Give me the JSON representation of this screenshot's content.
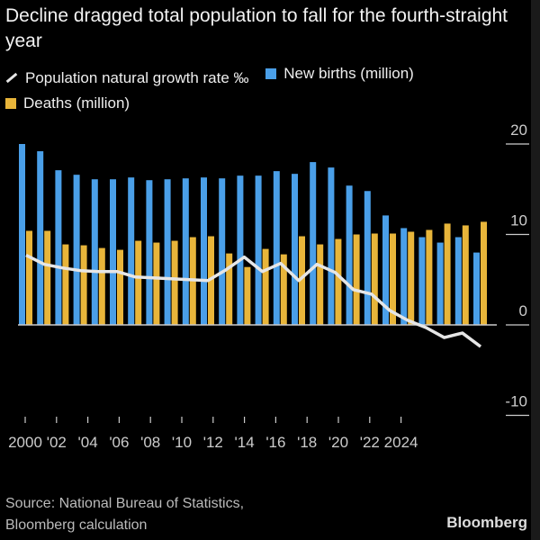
{
  "title": "Decline dragged total population to fall for the fourth-straight year",
  "legend": {
    "growth": "Population natural growth rate ‰",
    "births": "New births (million)",
    "deaths": "Deaths (million)"
  },
  "colors": {
    "births": "#4a9fe8",
    "deaths": "#e8b53a",
    "growth": "#e6e6e6"
  },
  "footer": {
    "source_line1": "Source: National Bureau of Statistics,",
    "source_line2": "Bloomberg calculation",
    "brand": "Bloomberg"
  },
  "chart_data": {
    "type": "bar",
    "title": "Decline dragged total population to fall for the fourth-straight year",
    "x": [
      2000,
      2001,
      2002,
      2003,
      2004,
      2005,
      2006,
      2007,
      2008,
      2009,
      2010,
      2011,
      2012,
      2013,
      2014,
      2015,
      2016,
      2017,
      2018,
      2019,
      2020,
      2021,
      2022,
      2023,
      2024,
      2025
    ],
    "series": [
      {
        "name": "New births (million)",
        "type": "bar",
        "values": [
          20.0,
          19.2,
          17.1,
          16.6,
          16.1,
          16.1,
          16.3,
          16.0,
          16.1,
          16.2,
          16.3,
          16.2,
          16.5,
          16.5,
          17.0,
          16.7,
          18.0,
          17.4,
          15.4,
          14.8,
          12.1,
          10.7,
          9.7,
          9.1,
          9.7,
          8.0
        ]
      },
      {
        "name": "Deaths (million)",
        "type": "bar",
        "values": [
          10.4,
          10.4,
          8.9,
          8.8,
          8.5,
          8.3,
          9.3,
          9.1,
          9.3,
          9.7,
          9.8,
          7.9,
          6.4,
          8.4,
          7.8,
          9.8,
          8.9,
          9.5,
          10.0,
          10.1,
          10.1,
          10.3,
          10.5,
          11.2,
          11.0,
          11.4
        ]
      },
      {
        "name": "Population natural growth rate ‰",
        "type": "line",
        "values": [
          7.7,
          6.7,
          6.3,
          6.0,
          5.9,
          5.9,
          5.3,
          5.2,
          5.1,
          5.0,
          4.9,
          6.1,
          7.5,
          5.9,
          6.8,
          4.9,
          6.7,
          5.8,
          3.9,
          3.4,
          1.6,
          0.5,
          -0.3,
          -1.4,
          -0.9,
          -2.4
        ]
      }
    ],
    "x_tick_labels": [
      "2000",
      "'02",
      "'04",
      "'06",
      "'08",
      "'10",
      "'12",
      "'14",
      "'16",
      "'18",
      "'20",
      "'22",
      "2024"
    ],
    "y_tick_labels": [
      "20",
      "10",
      "0",
      "-10"
    ],
    "y_ticks": [
      20,
      10,
      0,
      -10
    ],
    "ylim": [
      -10,
      20
    ],
    "legend_position": "top-left",
    "grid": false
  }
}
